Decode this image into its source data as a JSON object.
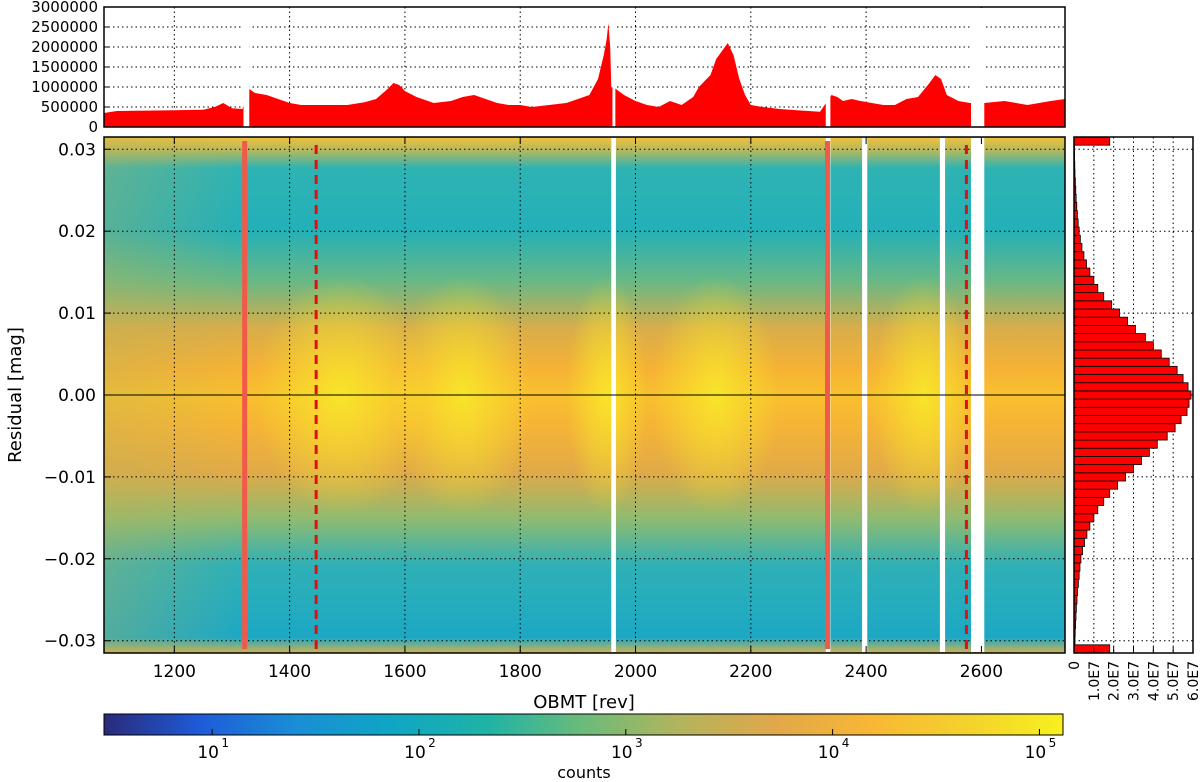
{
  "chart_data": [
    {
      "type": "area",
      "panel": "top-histogram",
      "color": "#ff0000",
      "xlim": [
        1078,
        2745
      ],
      "ylim": [
        0,
        3000000
      ],
      "yticks": [
        0,
        500000,
        1000000,
        1500000,
        2000000,
        2500000,
        3000000
      ],
      "ytick_labels": [
        "0",
        "500000",
        "1000000",
        "1500000",
        "2000000",
        "2500000",
        "3000000"
      ],
      "grid": true,
      "gaps": [
        [
          1320,
          1330
        ],
        [
          1960,
          1965
        ],
        [
          2330,
          2338
        ],
        [
          2582,
          2605
        ]
      ],
      "x": [
        1078,
        1100,
        1150,
        1200,
        1250,
        1270,
        1285,
        1300,
        1318,
        1330,
        1340,
        1360,
        1380,
        1400,
        1420,
        1450,
        1500,
        1530,
        1550,
        1570,
        1580,
        1590,
        1600,
        1620,
        1650,
        1680,
        1700,
        1720,
        1740,
        1760,
        1780,
        1800,
        1820,
        1850,
        1880,
        1900,
        1920,
        1935,
        1945,
        1950,
        1953,
        1956,
        1958,
        1966,
        1980,
        2000,
        2020,
        2040,
        2060,
        2080,
        2100,
        2110,
        2130,
        2140,
        2150,
        2160,
        2170,
        2180,
        2190,
        2200,
        2220,
        2250,
        2280,
        2300,
        2320,
        2340,
        2350,
        2360,
        2375,
        2390,
        2410,
        2430,
        2450,
        2470,
        2490,
        2510,
        2520,
        2530,
        2540,
        2560,
        2580,
        2605,
        2640,
        2680,
        2700,
        2720,
        2745
      ],
      "values": [
        350000,
        400000,
        410000,
        420000,
        430000,
        500000,
        600000,
        470000,
        450000,
        950000,
        850000,
        800000,
        700000,
        600000,
        550000,
        550000,
        550000,
        620000,
        700000,
        950000,
        1100000,
        1050000,
        900000,
        750000,
        600000,
        650000,
        750000,
        800000,
        700000,
        600000,
        550000,
        550000,
        500000,
        550000,
        600000,
        700000,
        800000,
        1200000,
        1800000,
        2200000,
        2600000,
        2000000,
        1000000,
        950000,
        800000,
        650000,
        550000,
        500000,
        650000,
        550000,
        750000,
        1000000,
        1300000,
        1700000,
        1900000,
        2100000,
        1800000,
        1200000,
        800000,
        550000,
        500000,
        450000,
        420000,
        400000,
        380000,
        800000,
        750000,
        650000,
        700000,
        650000,
        600000,
        550000,
        550000,
        700000,
        750000,
        1100000,
        1300000,
        1200000,
        800000,
        650000,
        600000,
        600000,
        650000,
        550000,
        600000,
        650000,
        700000
      ]
    },
    {
      "type": "heatmap",
      "panel": "main",
      "xlabel": "OBMT [rev]",
      "ylabel": "Residual [mag]",
      "xlim": [
        1078,
        2745
      ],
      "ylim": [
        -0.0315,
        0.0315
      ],
      "xticks": [
        1200,
        1400,
        1600,
        1800,
        2000,
        2200,
        2400,
        2600
      ],
      "xtick_labels": [
        "1200",
        "1400",
        "1600",
        "1800",
        "2000",
        "2200",
        "2400",
        "2600"
      ],
      "yticks": [
        0.03,
        0.02,
        0.01,
        0.0,
        -0.01,
        -0.02,
        -0.03
      ],
      "ytick_labels": [
        "0.03",
        "0.02",
        "0.01",
        "0.00",
        "−0.01",
        "−0.02",
        "−0.03"
      ],
      "grid": true,
      "colorscale": "log",
      "zero_line": 0.0,
      "gaps": [
        [
          1958,
          1966
        ],
        [
          2330,
          2338
        ],
        [
          2393,
          2402
        ],
        [
          2528,
          2537
        ],
        [
          2582,
          2605
        ]
      ],
      "solid_vlines": [
        {
          "x": 1322,
          "color": "#f05a4a"
        },
        {
          "x": 2333,
          "color": "#f05a4a"
        }
      ],
      "dashed_vlines": [
        {
          "x": 1446,
          "color": "#e01010"
        },
        {
          "x": 2574,
          "color": "#e01010"
        }
      ]
    },
    {
      "type": "bar",
      "panel": "right-histogram",
      "orientation": "horizontal",
      "color": "#ff0000",
      "xlim": [
        0,
        60000000
      ],
      "xticks": [
        0,
        10000000,
        20000000,
        30000000,
        40000000,
        50000000,
        60000000
      ],
      "xtick_labels": [
        "0",
        "1.0E7",
        "2.0E7",
        "3.0E7",
        "4.0E7",
        "5.0E7",
        "6.0E7"
      ],
      "grid": true,
      "bin_width": 0.001,
      "bin_centers": [
        -0.031,
        -0.03,
        -0.029,
        -0.028,
        -0.027,
        -0.026,
        -0.025,
        -0.024,
        -0.023,
        -0.022,
        -0.021,
        -0.02,
        -0.019,
        -0.018,
        -0.017,
        -0.016,
        -0.015,
        -0.014,
        -0.013,
        -0.012,
        -0.011,
        -0.01,
        -0.009,
        -0.008,
        -0.007,
        -0.006,
        -0.005,
        -0.004,
        -0.003,
        -0.002,
        -0.001,
        0.0,
        0.001,
        0.002,
        0.003,
        0.004,
        0.005,
        0.006,
        0.007,
        0.008,
        0.009,
        0.01,
        0.011,
        0.012,
        0.013,
        0.014,
        0.015,
        0.016,
        0.017,
        0.018,
        0.019,
        0.02,
        0.021,
        0.022,
        0.023,
        0.024,
        0.025,
        0.026,
        0.027,
        0.028,
        0.029,
        0.03,
        0.031
      ],
      "values": [
        18000000,
        500000,
        600000,
        800000,
        1000000,
        1200000,
        1500000,
        1800000,
        2200000,
        2600000,
        3000000,
        3500000,
        4300000,
        5300000,
        6500000,
        8000000,
        10000000,
        12000000,
        15000000,
        18000000,
        22000000,
        26000000,
        30000000,
        34000000,
        38000000,
        42000000,
        47000000,
        51000000,
        54000000,
        57000000,
        58000000,
        59000000,
        57500000,
        55000000,
        52000000,
        48000000,
        44000000,
        40000000,
        36000000,
        31000000,
        27000000,
        23000000,
        19000000,
        15000000,
        12000000,
        10000000,
        8000000,
        6300000,
        5000000,
        4000000,
        3200000,
        2600000,
        2100000,
        1700000,
        1400000,
        1100000,
        900000,
        700000,
        500000,
        400000,
        300000,
        200000,
        18000000
      ]
    },
    {
      "type": "colorbar",
      "label": "counts",
      "scale": "log",
      "range": [
        3,
        130000
      ],
      "ticks": [
        10,
        100,
        1000,
        10000,
        100000
      ],
      "tick_labels": [
        "10",
        "10",
        "10",
        "10",
        "10"
      ],
      "tick_exponents": [
        "1",
        "2",
        "3",
        "4",
        "5"
      ],
      "colormap": [
        "#2a2a7a",
        "#1e5bd8",
        "#1a8ed6",
        "#0fa6c4",
        "#1fb3a6",
        "#6bbb7a",
        "#b3b45c",
        "#e0a84a",
        "#f8b735",
        "#f4d22c",
        "#f7f01f"
      ]
    }
  ]
}
